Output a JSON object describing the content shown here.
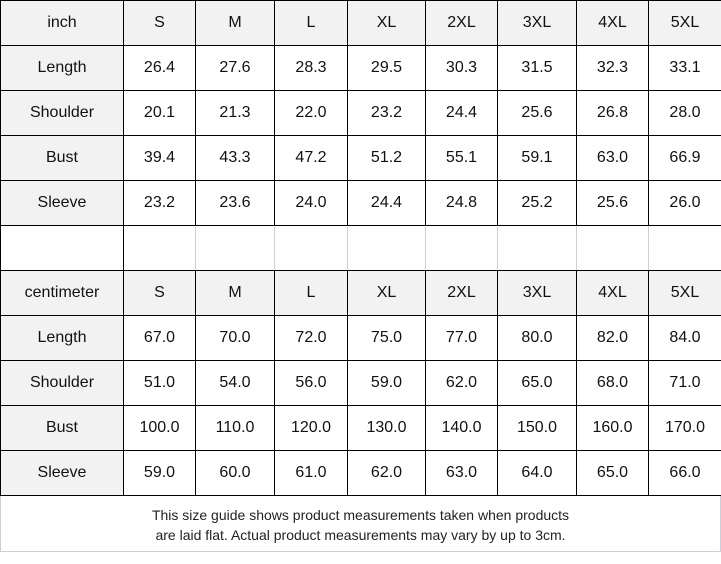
{
  "tables": [
    {
      "unit": "inch",
      "sizes": [
        "S",
        "M",
        "L",
        "XL",
        "2XL",
        "3XL",
        "4XL",
        "5XL"
      ],
      "rows": [
        {
          "label": "Length",
          "values": [
            "26.4",
            "27.6",
            "28.3",
            "29.5",
            "30.3",
            "31.5",
            "32.3",
            "33.1"
          ]
        },
        {
          "label": "Shoulder",
          "values": [
            "20.1",
            "21.3",
            "22.0",
            "23.2",
            "24.4",
            "25.6",
            "26.8",
            "28.0"
          ]
        },
        {
          "label": "Bust",
          "values": [
            "39.4",
            "43.3",
            "47.2",
            "51.2",
            "55.1",
            "59.1",
            "63.0",
            "66.9"
          ]
        },
        {
          "label": "Sleeve",
          "values": [
            "23.2",
            "23.6",
            "24.0",
            "24.4",
            "24.8",
            "25.2",
            "25.6",
            "26.0"
          ]
        }
      ]
    },
    {
      "unit": "centimeter",
      "sizes": [
        "S",
        "M",
        "L",
        "XL",
        "2XL",
        "3XL",
        "4XL",
        "5XL"
      ],
      "rows": [
        {
          "label": "Length",
          "values": [
            "67.0",
            "70.0",
            "72.0",
            "75.0",
            "77.0",
            "80.0",
            "82.0",
            "84.0"
          ]
        },
        {
          "label": "Shoulder",
          "values": [
            "51.0",
            "54.0",
            "56.0",
            "59.0",
            "62.0",
            "65.0",
            "68.0",
            "71.0"
          ]
        },
        {
          "label": "Bust",
          "values": [
            "100.0",
            "110.0",
            "120.0",
            "130.0",
            "140.0",
            "150.0",
            "160.0",
            "170.0"
          ]
        },
        {
          "label": "Sleeve",
          "values": [
            "59.0",
            "60.0",
            "61.0",
            "62.0",
            "63.0",
            "64.0",
            "65.0",
            "66.0"
          ]
        }
      ]
    }
  ],
  "note": {
    "line1": "This size guide shows product measurements taken when products",
    "line2": "are laid flat. Actual product measurements may vary by up to 3cm."
  }
}
